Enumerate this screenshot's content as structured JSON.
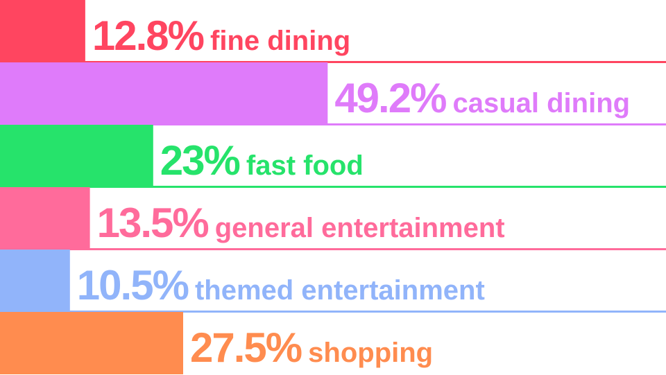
{
  "chart_data": {
    "type": "bar",
    "orientation": "horizontal",
    "categories": [
      "fine dining",
      "casual dining",
      "fast food",
      "general entertainment",
      "themed entertainment",
      "shopping"
    ],
    "values": [
      12.8,
      49.2,
      23,
      13.5,
      10.5,
      27.5
    ],
    "value_labels": [
      "12.8%",
      "49.2%",
      "23%",
      "13.5%",
      "10.5%",
      "27.5%"
    ],
    "xlim": [
      0,
      100
    ],
    "colors": [
      "#ff4560",
      "#df7bfa",
      "#26e36b",
      "#ff6b9b",
      "#91b4fa",
      "#ff8c4f"
    ],
    "grid": false,
    "legend": "none"
  }
}
